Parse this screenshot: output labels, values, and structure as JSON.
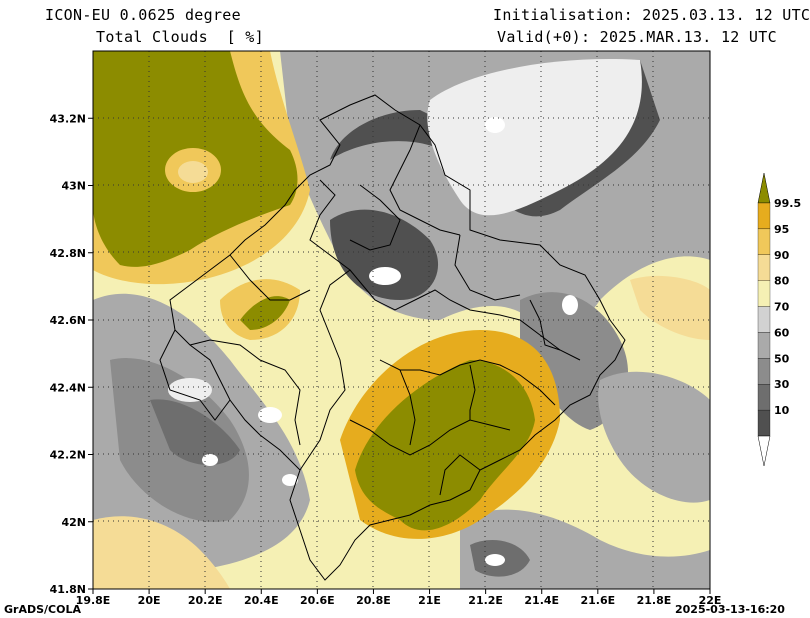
{
  "header": {
    "model_line": "ICON-EU 0.0625 degree",
    "field_line": "Total Clouds  [ %]",
    "init_line": "Initialisation: 2025.03.13. 12 UTC",
    "valid_line": "Valid(+0): 2025.MAR.13. 12 UTC"
  },
  "footer": {
    "left": "GrADS/COLA",
    "right": "2025-03-13-16:20"
  },
  "map": {
    "lat_labels": [
      "43.2N",
      "43N",
      "42.8N",
      "42.6N",
      "42.4N",
      "42.2N",
      "42N",
      "41.8N"
    ],
    "lat_values": [
      43.2,
      43.0,
      42.8,
      42.6,
      42.4,
      42.2,
      42.0,
      41.8
    ],
    "lon_labels": [
      "19.8E",
      "20E",
      "20.2E",
      "20.4E",
      "20.6E",
      "20.8E",
      "21E",
      "21.2E",
      "21.4E",
      "21.6E",
      "21.8E",
      "22E"
    ],
    "lon_values": [
      19.8,
      20.0,
      20.2,
      20.4,
      20.6,
      20.8,
      21.0,
      21.2,
      21.4,
      21.6,
      21.8,
      22.0
    ],
    "lon_range": [
      19.8,
      22.0
    ],
    "lat_range": [
      41.8,
      43.4
    ],
    "grid": true
  },
  "legend": {
    "labels": [
      "99.5",
      "95",
      "90",
      "80",
      "70",
      "60",
      "50",
      "30",
      "10"
    ],
    "colors": [
      "#8c8c00",
      "#e6ac1e",
      "#f0c85a",
      "#f5dc96",
      "#f5f0b4",
      "#d2d2d2",
      "#aaaaaa",
      "#8c8c8c",
      "#6e6e6e",
      "#505050",
      "#ffffff"
    ]
  },
  "palette": {
    "clear": "#ffffff",
    "very_low": "#eeeeee",
    "low": "#505050",
    "low2": "#6e6e6e",
    "mid1": "#8c8c8c",
    "mid2": "#aaaaaa",
    "mid3": "#d2d2d2",
    "high1": "#f5f0b4",
    "high2": "#f5dc96",
    "high3": "#f0c85a",
    "high4": "#e6ac1e",
    "full": "#8c8c00"
  }
}
